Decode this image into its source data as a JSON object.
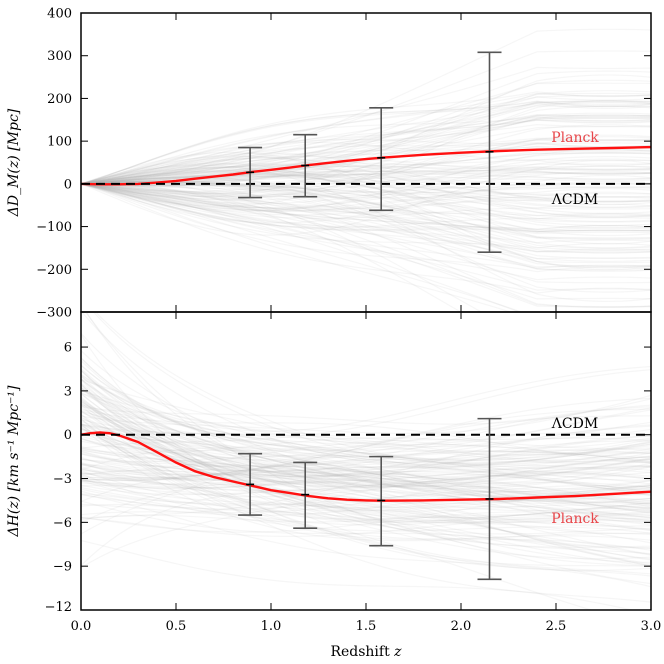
{
  "chart_data": {
    "type": "line",
    "shared_x": {
      "label_prefix": "Redshift ",
      "label_var": "z",
      "range": [
        0.0,
        3.0
      ],
      "ticks": [
        0.0,
        0.5,
        1.0,
        1.5,
        2.0,
        2.5,
        3.0
      ],
      "tick_labels": [
        "0.0",
        "0.5",
        "1.0",
        "1.5",
        "2.0",
        "2.5",
        "3.0"
      ]
    },
    "panels": [
      {
        "id": "dm",
        "ylabel": "ΔD_M(z) [Mpc]",
        "ylim": [
          -300,
          400
        ],
        "yticks": [
          -300,
          -200,
          -100,
          0,
          100,
          200,
          300,
          400
        ],
        "ytick_labels": [
          "−300",
          "−200",
          "−100",
          "0",
          "100",
          "200",
          "300",
          "400"
        ],
        "series": [
          {
            "name": "Planck",
            "color": "#ff1010",
            "x": [
              0.0,
              0.1,
              0.2,
              0.3,
              0.4,
              0.5,
              0.6,
              0.7,
              0.8,
              0.9,
              1.0,
              1.1,
              1.2,
              1.3,
              1.4,
              1.5,
              1.6,
              1.8,
              2.0,
              2.2,
              2.4,
              2.6,
              2.8,
              3.0
            ],
            "y": [
              0,
              -1,
              -1,
              0,
              3,
              7,
              12,
              17,
              22,
              28,
              33,
              38,
              44,
              49,
              54,
              58,
              62,
              68,
              73,
              77,
              80,
              82,
              84,
              86
            ]
          },
          {
            "name": "ΛCDM",
            "color": "#000000",
            "style": "dashed",
            "x": [
              0.0,
              3.0
            ],
            "y": [
              0,
              0
            ]
          }
        ],
        "error_bars": [
          {
            "x": 0.89,
            "y": 27,
            "lo": -32,
            "hi": 85
          },
          {
            "x": 1.18,
            "y": 43,
            "lo": -30,
            "hi": 115
          },
          {
            "x": 1.58,
            "y": 61,
            "lo": -62,
            "hi": 178
          },
          {
            "x": 2.15,
            "y": 75,
            "lo": -160,
            "hi": 308
          }
        ],
        "annotations": [
          {
            "text": "Planck",
            "x": 2.6,
            "y": 110,
            "color": "#e8464a"
          },
          {
            "text": "ΛCDM",
            "x": 2.6,
            "y": -35,
            "color": "#000000"
          }
        ]
      },
      {
        "id": "hz",
        "ylabel": "ΔH(z) [km s⁻¹ Mpc⁻¹]",
        "ylim": [
          -12,
          8.4
        ],
        "yticks": [
          -12,
          -9,
          -6,
          -3,
          0,
          3,
          6
        ],
        "ytick_labels": [
          "−12",
          "−9",
          "−6",
          "−3",
          "0",
          "3",
          "6"
        ],
        "series": [
          {
            "name": "Planck",
            "color": "#ff1010",
            "x": [
              0.0,
              0.05,
              0.1,
              0.15,
              0.2,
              0.3,
              0.4,
              0.5,
              0.6,
              0.7,
              0.8,
              0.9,
              1.0,
              1.1,
              1.2,
              1.3,
              1.4,
              1.5,
              1.6,
              1.8,
              2.0,
              2.2,
              2.4,
              2.6,
              2.8,
              3.0
            ],
            "y": [
              0.0,
              0.1,
              0.15,
              0.1,
              -0.05,
              -0.5,
              -1.2,
              -1.9,
              -2.5,
              -2.9,
              -3.2,
              -3.5,
              -3.8,
              -4.0,
              -4.2,
              -4.35,
              -4.45,
              -4.5,
              -4.52,
              -4.5,
              -4.45,
              -4.4,
              -4.3,
              -4.2,
              -4.05,
              -3.9
            ]
          },
          {
            "name": "ΛCDM",
            "color": "#000000",
            "style": "dashed",
            "x": [
              0.0,
              3.0
            ],
            "y": [
              0,
              0
            ]
          }
        ],
        "error_bars": [
          {
            "x": 0.89,
            "y": -3.4,
            "lo": -5.5,
            "hi": -1.3
          },
          {
            "x": 1.18,
            "y": -4.1,
            "lo": -6.4,
            "hi": -1.9
          },
          {
            "x": 1.58,
            "y": -4.5,
            "lo": -7.6,
            "hi": -1.5
          },
          {
            "x": 2.15,
            "y": -4.4,
            "lo": -9.9,
            "hi": 1.1
          }
        ],
        "annotations": [
          {
            "text": "ΛCDM",
            "x": 2.6,
            "y": 0.8,
            "color": "#000000"
          },
          {
            "text": "Planck",
            "x": 2.6,
            "y": -5.7,
            "color": "#e8464a"
          }
        ]
      }
    ],
    "band_color": "#b8b8b8"
  }
}
